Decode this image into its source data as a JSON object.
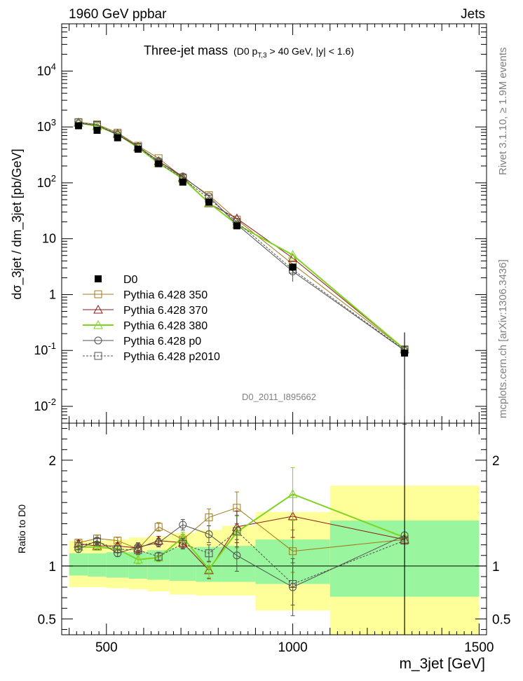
{
  "header": {
    "left": "1960 GeV ppbar",
    "right": "Jets"
  },
  "side": {
    "rivet": "Rivet 3.1.10, ≥ 1.9M events",
    "mcplots": "mcplots.cern.ch [arXiv:1306.3436]"
  },
  "colors": {
    "data": "#000000",
    "pythia350": "#a07a19",
    "pythia370": "#8b1a1a",
    "pythia380": "#7fd321",
    "pythia_p0": "#505050",
    "pythia_p2010": "#505050",
    "band_inner": "#99f59e",
    "band_outer": "#ffff99"
  },
  "chart_data": [
    {
      "type": "line",
      "title": "Three-jet mass",
      "subtitle": "(D0 p_T,3 > 40 GeV, |y| < 1.6)",
      "analysis_label": "D0_2011_I895662",
      "xlabel": "m_3jet [GeV]",
      "ylabel": "dσ_3jet / dm_3jet [pb/GeV]",
      "xlim": [
        380,
        1520
      ],
      "ylim": [
        0.005,
        70000
      ],
      "yscale": "log",
      "legend_position": "bottom-left",
      "y_tick_labels": [
        "10^-2",
        "10^-1",
        "1",
        "10",
        "10^2",
        "10^3",
        "10^4"
      ],
      "x": [
        425,
        475,
        530,
        585,
        640,
        705,
        775,
        850,
        1000,
        1300
      ],
      "series": [
        {
          "name": "D0",
          "style": "data",
          "values": [
            1050,
            870,
            640,
            400,
            220,
            103,
            45,
            17,
            3.1,
            0.09
          ],
          "err_low": [
            90,
            70,
            50,
            30,
            18,
            9,
            4,
            1.7,
            0.5,
            0.07
          ],
          "err_high": [
            90,
            70,
            50,
            30,
            18,
            9,
            4,
            1.7,
            0.5,
            0.12
          ]
        },
        {
          "name": "Pythia 6.428 350",
          "style": "p350",
          "values": [
            1220,
            1110,
            790,
            460,
            275,
            125,
            60,
            22,
            3.5,
            0.105
          ]
        },
        {
          "name": "Pythia 6.428 370",
          "style": "p370",
          "values": [
            1200,
            1040,
            760,
            440,
            245,
            125,
            43,
            23,
            4.5,
            0.105
          ]
        },
        {
          "name": "Pythia 6.428 380",
          "style": "p380",
          "values": [
            1180,
            1030,
            740,
            425,
            225,
            118,
            44,
            18,
            5.1,
            0.105
          ]
        },
        {
          "name": "Pythia 6.428 p0",
          "style": "pp0",
          "values": [
            1150,
            1080,
            720,
            445,
            245,
            130,
            57,
            18,
            2.6,
            0.1
          ],
          "err": [
            30,
            28,
            22,
            15,
            10,
            6,
            4,
            1.3,
            0.9,
            0.02
          ]
        },
        {
          "name": "Pythia 6.428 p2010",
          "style": "pp2010",
          "values": [
            1200,
            1080,
            750,
            440,
            230,
            120,
            52,
            20,
            2.8,
            0.102
          ]
        }
      ]
    },
    {
      "type": "line",
      "ylabel": "Ratio to D0",
      "xlabel": "m_3jet [GeV]",
      "xlim": [
        380,
        1520
      ],
      "ylim": [
        0.35,
        2.35
      ],
      "y_tick_labels": [
        "0.5",
        "1",
        "2"
      ],
      "x_tick_labels": [
        "500",
        "1000",
        "1500"
      ],
      "bands": [
        {
          "x0": 400,
          "x1": 450,
          "inner": [
            0.91,
            1.12
          ],
          "outer": [
            0.8,
            1.24
          ]
        },
        {
          "x0": 450,
          "x1": 500,
          "inner": [
            0.9,
            1.12
          ],
          "outer": [
            0.8,
            1.24
          ]
        },
        {
          "x0": 500,
          "x1": 560,
          "inner": [
            0.89,
            1.13
          ],
          "outer": [
            0.79,
            1.25
          ]
        },
        {
          "x0": 560,
          "x1": 610,
          "inner": [
            0.88,
            1.13
          ],
          "outer": [
            0.78,
            1.27
          ]
        },
        {
          "x0": 610,
          "x1": 670,
          "inner": [
            0.87,
            1.15
          ],
          "outer": [
            0.76,
            1.28
          ]
        },
        {
          "x0": 670,
          "x1": 740,
          "inner": [
            0.86,
            1.17
          ],
          "outer": [
            0.73,
            1.31
          ]
        },
        {
          "x0": 740,
          "x1": 810,
          "inner": [
            0.85,
            1.18
          ],
          "outer": [
            0.72,
            1.34
          ]
        },
        {
          "x0": 810,
          "x1": 900,
          "inner": [
            0.85,
            1.19
          ],
          "outer": [
            0.72,
            1.38
          ]
        },
        {
          "x0": 900,
          "x1": 1100,
          "inner": [
            0.83,
            1.25
          ],
          "outer": [
            0.58,
            1.51
          ]
        },
        {
          "x0": 1100,
          "x1": 1500,
          "inner": [
            0.71,
            1.43
          ],
          "outer": [
            0.35,
            1.76
          ]
        }
      ],
      "series": [
        {
          "name": "D0",
          "style": "data",
          "values": [
            1,
            1,
            1,
            1,
            1,
            1,
            1,
            1,
            1,
            1
          ]
        },
        {
          "name": "Pythia 6.428 350",
          "style": "p350",
          "values": [
            1.22,
            1.26,
            1.24,
            1.16,
            1.37,
            1.25,
            1.46,
            1.55,
            1.14,
            1.25
          ],
          "err": [
            0.03,
            0.03,
            0.03,
            0.04,
            0.04,
            0.05,
            0.08,
            0.15,
            0.2,
            1.1
          ]
        },
        {
          "name": "Pythia 6.428 370",
          "style": "p370",
          "values": [
            1.21,
            1.19,
            1.19,
            1.17,
            1.24,
            1.22,
            0.96,
            1.37,
            1.47,
            1.25
          ],
          "err": [
            0.03,
            0.03,
            0.03,
            0.04,
            0.04,
            0.05,
            0.08,
            0.15,
            0.2,
            1.1
          ]
        },
        {
          "name": "Pythia 6.428 380",
          "style": "p380",
          "values": [
            1.18,
            1.18,
            1.16,
            1.06,
            1.08,
            1.27,
            0.97,
            1.32,
            1.68,
            1.27
          ],
          "err": [
            0.03,
            0.03,
            0.03,
            0.04,
            0.04,
            0.05,
            0.08,
            0.15,
            0.25,
            1.1
          ]
        },
        {
          "name": "Pythia 6.428 p0",
          "style": "pp0",
          "values": [
            1.16,
            1.24,
            1.12,
            1.18,
            1.22,
            1.39,
            1.3,
            1.1,
            0.8,
            1.29
          ],
          "err": [
            0.03,
            0.03,
            0.03,
            0.04,
            0.04,
            0.05,
            0.08,
            0.15,
            0.27,
            1.1
          ]
        },
        {
          "name": "Pythia 6.428 p2010",
          "style": "pp2010",
          "values": [
            1.19,
            1.23,
            1.16,
            1.15,
            1.09,
            1.21,
            1.12,
            1.33,
            0.83,
            1.24
          ],
          "err": [
            0.03,
            0.03,
            0.03,
            0.04,
            0.04,
            0.05,
            0.08,
            0.15,
            0.2,
            1.1
          ]
        }
      ]
    }
  ]
}
